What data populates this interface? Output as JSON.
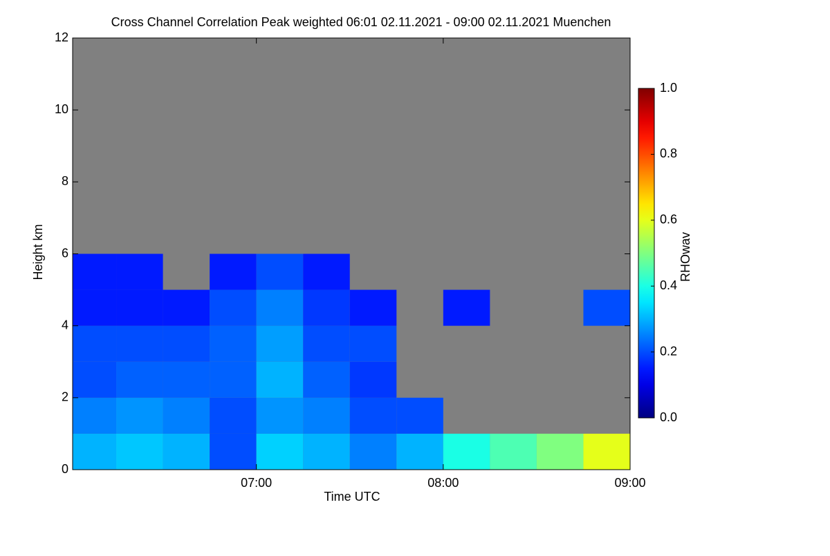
{
  "chart_data": {
    "type": "heatmap",
    "title": "Cross Channel Correlation Peak weighted   06:01 02.11.2021 - 09:00 02.11.2021 Muenchen",
    "x_label": "Time UTC",
    "y_label": "Height km",
    "colorbar_label": "RHOwav",
    "background": "#808080",
    "colormap": "jet",
    "x": [
      6.125,
      6.375,
      6.625,
      6.875,
      7.125,
      7.375,
      7.625,
      7.875,
      8.125,
      8.375,
      8.625,
      8.875
    ],
    "y": [
      0.5,
      1.5,
      2.5,
      3.5,
      4.5,
      5.5,
      6.5,
      7.5,
      8.5,
      9.5,
      10.5,
      11.5
    ],
    "z": [
      [
        0.3,
        0.32,
        0.3,
        0.2,
        0.33,
        0.3,
        0.25,
        0.3,
        0.4,
        0.45,
        0.5,
        0.6
      ],
      [
        0.25,
        0.27,
        0.25,
        0.2,
        0.27,
        0.25,
        0.2,
        0.2,
        null,
        null,
        null,
        null
      ],
      [
        0.2,
        0.22,
        0.22,
        0.22,
        0.3,
        0.22,
        0.18,
        null,
        null,
        null,
        null,
        null
      ],
      [
        0.2,
        0.2,
        0.2,
        0.22,
        0.28,
        0.2,
        0.2,
        null,
        null,
        null,
        null,
        null
      ],
      [
        0.15,
        0.15,
        0.15,
        0.2,
        0.25,
        0.18,
        0.15,
        null,
        0.15,
        null,
        null,
        0.2
      ],
      [
        0.15,
        0.15,
        null,
        0.15,
        0.2,
        0.15,
        null,
        null,
        null,
        null,
        null,
        null
      ],
      [
        null,
        null,
        null,
        null,
        null,
        null,
        null,
        null,
        null,
        null,
        null,
        null
      ],
      [
        null,
        null,
        null,
        null,
        null,
        null,
        null,
        null,
        null,
        null,
        null,
        null
      ],
      [
        null,
        null,
        null,
        null,
        null,
        null,
        null,
        null,
        null,
        null,
        null,
        null
      ],
      [
        null,
        null,
        null,
        null,
        null,
        null,
        null,
        null,
        null,
        null,
        null,
        null
      ],
      [
        null,
        null,
        null,
        null,
        null,
        null,
        null,
        null,
        null,
        null,
        null,
        null
      ],
      [
        null,
        null,
        null,
        null,
        null,
        null,
        null,
        null,
        null,
        null,
        null,
        null
      ]
    ],
    "xlim": [
      6.0167,
      9
    ],
    "xticks": [
      {
        "value": 7,
        "label": "07:00"
      },
      {
        "value": 8,
        "label": "08:00"
      },
      {
        "value": 9,
        "label": "09:00"
      }
    ],
    "ylim": [
      0,
      12
    ],
    "yticks": [
      0,
      2,
      4,
      6,
      8,
      10,
      12
    ],
    "zlim": [
      0,
      1
    ],
    "zticks": [
      {
        "value": 0,
        "label": "0.0"
      },
      {
        "value": 0.2,
        "label": "0.2"
      },
      {
        "value": 0.4,
        "label": "0.4"
      },
      {
        "value": 0.6,
        "label": "0.6"
      },
      {
        "value": 0.8,
        "label": "0.8"
      },
      {
        "value": 1,
        "label": "1.0"
      }
    ]
  }
}
